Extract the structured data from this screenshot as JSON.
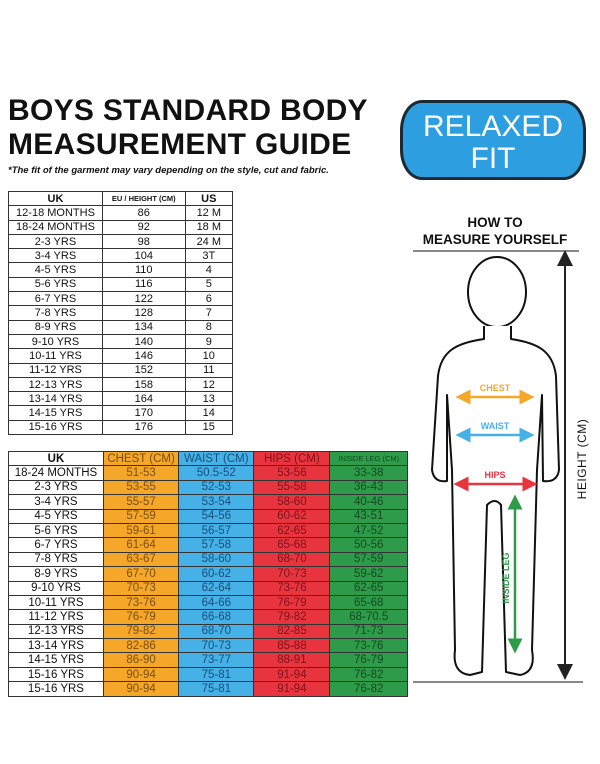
{
  "title_line1": "BOYS STANDARD BODY",
  "title_line2": "MEASUREMENT GUIDE",
  "note": "*The fit of the garment may vary depending on the style, cut and fabric.",
  "badge": {
    "line1": "RELAXED",
    "line2": "FIT",
    "color": "#2d9ee0"
  },
  "howto": {
    "line1": "HOW TO",
    "line2": "MEASURE YOURSELF"
  },
  "figure": {
    "chest": "CHEST",
    "waist": "WAIST",
    "hips": "HIPS",
    "inside_leg": "INSIDE LEG",
    "height": "HEIGHT (CM)"
  },
  "colors": {
    "chest": "#f5a72a",
    "waist": "#45b1e6",
    "hips": "#e8343f",
    "inside_leg": "#2e9b4a"
  },
  "size_table": {
    "headers": [
      "UK",
      "EU / HEIGHT (CM)",
      "US"
    ],
    "rows": [
      [
        "12-18 MONTHS",
        "86",
        "12 M"
      ],
      [
        "18-24 MONTHS",
        "92",
        "18 M"
      ],
      [
        "2-3 YRS",
        "98",
        "24 M"
      ],
      [
        "3-4 YRS",
        "104",
        "3T"
      ],
      [
        "4-5 YRS",
        "110",
        "4"
      ],
      [
        "5-6 YRS",
        "116",
        "5"
      ],
      [
        "6-7 YRS",
        "122",
        "6"
      ],
      [
        "7-8 YRS",
        "128",
        "7"
      ],
      [
        "8-9 YRS",
        "134",
        "8"
      ],
      [
        "9-10 YRS",
        "140",
        "9"
      ],
      [
        "10-11 YRS",
        "146",
        "10"
      ],
      [
        "11-12 YRS",
        "152",
        "11"
      ],
      [
        "12-13 YRS",
        "158",
        "12"
      ],
      [
        "13-14 YRS",
        "164",
        "13"
      ],
      [
        "14-15 YRS",
        "170",
        "14"
      ],
      [
        "15-16 YRS",
        "176",
        "15"
      ]
    ]
  },
  "measure_table": {
    "headers": [
      "UK",
      "CHEST (CM)",
      "WAIST (CM)",
      "HIPS (CM)",
      "INSIDE LEG (CM)"
    ],
    "rows": [
      [
        "18-24 MONTHS",
        "51-53",
        "50.5-52",
        "53-56",
        "33-38"
      ],
      [
        "2-3 YRS",
        "53-55",
        "52-53",
        "55-58",
        "36-43"
      ],
      [
        "3-4 YRS",
        "55-57",
        "53-54",
        "58-60",
        "40-46"
      ],
      [
        "4-5 YRS",
        "57-59",
        "54-56",
        "60-62",
        "43-51"
      ],
      [
        "5-6 YRS",
        "59-61",
        "56-57",
        "62-65",
        "47-52"
      ],
      [
        "6-7 YRS",
        "61-64",
        "57-58",
        "65-68",
        "50-56"
      ],
      [
        "7-8 YRS",
        "63-67",
        "58-60",
        "68-70",
        "57-59"
      ],
      [
        "8-9 YRS",
        "67-70",
        "60-62",
        "70-73",
        "59-62"
      ],
      [
        "9-10 YRS",
        "70-73",
        "62-64",
        "73-76",
        "62-65"
      ],
      [
        "10-11 YRS",
        "73-76",
        "64-66",
        "76-79",
        "65-68"
      ],
      [
        "11-12 YRS",
        "76-79",
        "66-68",
        "79-82",
        "68-70.5"
      ],
      [
        "12-13 YRS",
        "79-82",
        "68-70",
        "82-85",
        "71-73"
      ],
      [
        "13-14 YRS",
        "82-86",
        "70-73",
        "85-88",
        "73-76"
      ],
      [
        "14-15 YRS",
        "86-90",
        "73-77",
        "88-91",
        "76-79"
      ],
      [
        "15-16 YRS",
        "90-94",
        "75-81",
        "91-94",
        "76-82"
      ],
      [
        "15-16 YRS",
        "90-94",
        "75-81",
        "91-94",
        "76-82"
      ]
    ]
  }
}
